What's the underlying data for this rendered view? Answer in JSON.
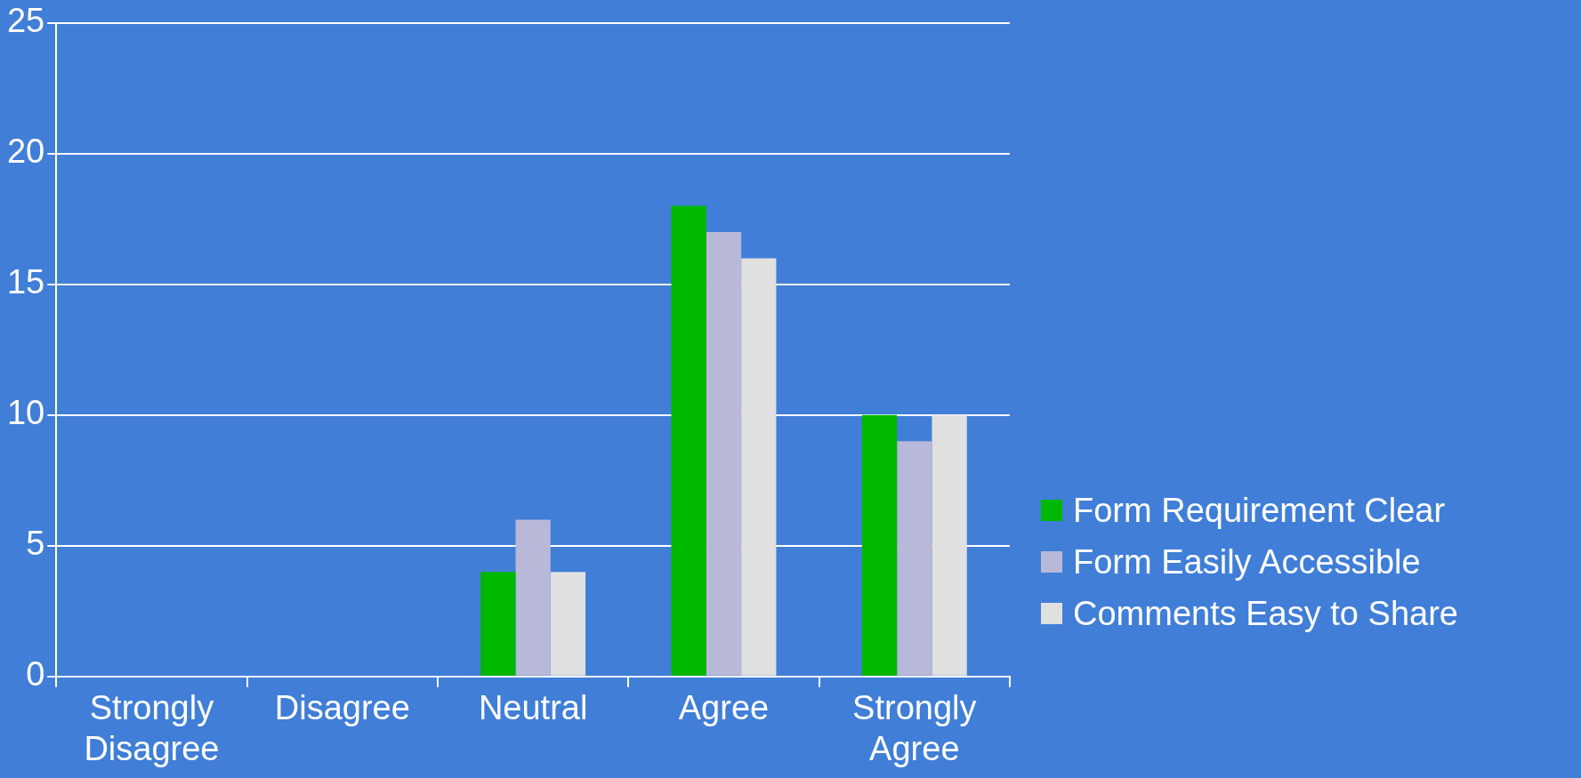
{
  "chart_data": {
    "type": "bar",
    "categories": [
      "Strongly Disagree",
      "Disagree",
      "Neutral",
      "Agree",
      "Strongly Agree"
    ],
    "series": [
      {
        "name": "Form Requirement Clear",
        "color": "#00b800",
        "values": [
          0,
          0,
          4,
          18,
          10
        ]
      },
      {
        "name": "Form Easily Accessible",
        "color": "#b8b8d8",
        "values": [
          0,
          0,
          6,
          17,
          9
        ]
      },
      {
        "name": "Comments Easy to Share",
        "color": "#e0e0e0",
        "values": [
          0,
          0,
          4,
          16,
          10
        ]
      }
    ],
    "ylim": [
      0,
      25
    ],
    "yticks": [
      0,
      5,
      10,
      15,
      20,
      25
    ],
    "grid": "y",
    "legend": "right"
  }
}
